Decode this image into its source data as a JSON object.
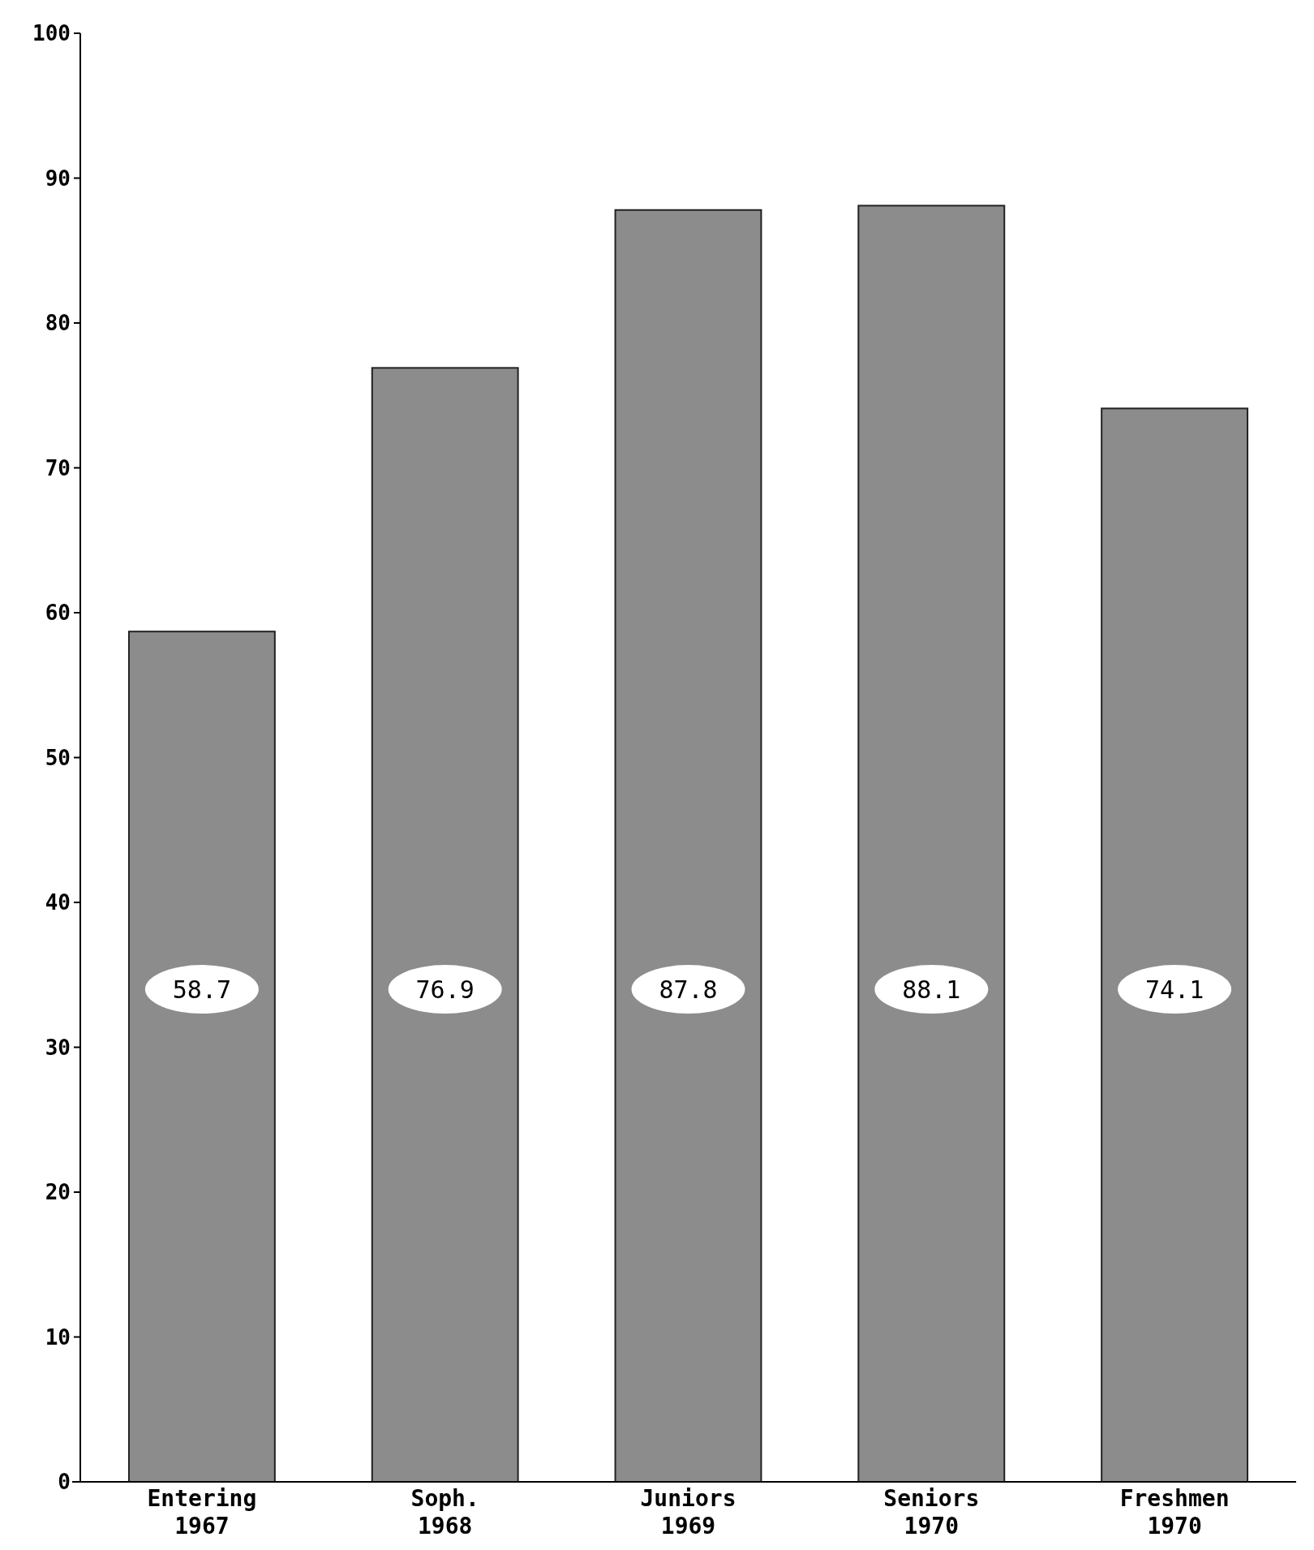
{
  "chart_data": {
    "type": "bar",
    "categories": [
      "Entering 1967",
      "Soph. 1968",
      "Juniors 1969",
      "Seniors 1970",
      "Freshmen 1970"
    ],
    "values": [
      58.7,
      76.9,
      87.8,
      88.1,
      74.1
    ],
    "color": "#8c8c8c",
    "ylim": [
      0,
      100
    ],
    "yticks": [
      0,
      10,
      20,
      30,
      40,
      50,
      60,
      70,
      80,
      90,
      100
    ],
    "data_labels": true
  }
}
